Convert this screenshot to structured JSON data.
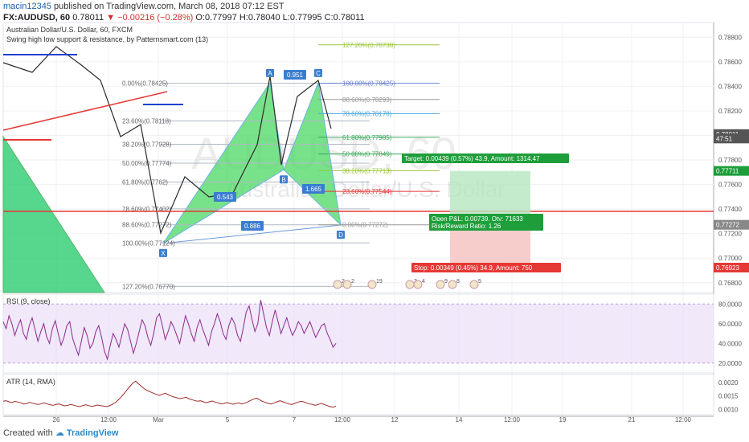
{
  "header": {
    "author": "macin12345",
    "published_text": "published on TradingView.com, March 08, 2018 07:12 EST",
    "symbol": "FX:AUDUSD, 60",
    "last": "0.78011",
    "change": "−0.00216 (−0.28%)",
    "ohlc": "O:0.77997 H:0.78040 L:0.77995 C:0.78011"
  },
  "chart_data": [
    {
      "type": "line",
      "title": "Australian Dollar/U.S. Dollar, 60, FXCM",
      "indicator": "Swing high low support & resistance, by Patternsmart.com (13)",
      "watermark": "AUDUSD, 60",
      "watermark_sub": "Australian Dollar/U.S. Dollar",
      "x_ticks": [
        "26",
        "12:00",
        "Mar",
        "5",
        "7",
        "12:00",
        "12",
        "14",
        "12:00",
        "19",
        "21",
        "12:00"
      ],
      "y_ticks": [
        "0.78800",
        "0.78600",
        "0.78400",
        "0.78200",
        "0.78000",
        "0.77800",
        "0.77600",
        "0.77400",
        "0.77200",
        "0.77000",
        "0.76800"
      ],
      "ylim": [
        0.7672,
        0.7892
      ],
      "price_labels": [
        {
          "text": "0.78011",
          "value": 0.78011,
          "color": "#555555"
        },
        {
          "text": "47:51",
          "value": 0.77975,
          "color": "#555555"
        },
        {
          "text": "0.77711",
          "value": 0.77711,
          "color": "#1e9e3a"
        },
        {
          "text": "0.77272",
          "value": 0.77272,
          "color": "#888888"
        },
        {
          "text": "0.76923",
          "value": 0.76923,
          "color": "#e53935"
        }
      ],
      "pattern_points": [
        {
          "label": "X",
          "x": "Mar 1",
          "y": 0.7712
        },
        {
          "label": "A",
          "x": "Mar 6",
          "y": 0.7843
        },
        {
          "label": "B",
          "x": "Mar 6",
          "y": 0.7772
        },
        {
          "label": "C",
          "x": "Mar 8",
          "y": 0.7843
        },
        {
          "label": "D",
          "x": "Mar 8",
          "y": 0.7727
        }
      ],
      "pattern_ratios": [
        "0.543",
        "0.951",
        "1.665",
        "0.886"
      ],
      "fib_left": [
        {
          "label": "0.00%(0.78425)",
          "value": 0.78425
        },
        {
          "label": "23.60%(0.78118)",
          "value": 0.78118
        },
        {
          "label": "38.20%(0.77928)",
          "value": 0.77928
        },
        {
          "label": "50.00%(0.77774)",
          "value": 0.77774
        },
        {
          "label": "61.80%(0.7762)",
          "value": 0.7762
        },
        {
          "label": "78.60%(0.77402)",
          "value": 0.77402
        },
        {
          "label": "88.60%(0.77272)",
          "value": 0.77272
        },
        {
          "label": "100.00%(0.77124)",
          "value": 0.77124
        },
        {
          "label": "127.20%(0.76770)",
          "value": 0.7677
        }
      ],
      "fib_right": [
        {
          "label": "127.20%(0.78738)",
          "value": 0.78738
        },
        {
          "label": "100.00%(0.78425)",
          "value": 0.78425
        },
        {
          "label": "88.60%(0.78293)",
          "value": 0.78293
        },
        {
          "label": "78.60%(0.78178)",
          "value": 0.78178
        },
        {
          "label": "61.80%(0.77985)",
          "value": 0.77985
        },
        {
          "label": "50.00%(0.77849)",
          "value": 0.77849
        },
        {
          "label": "38.20%(0.77713)",
          "value": 0.77713
        },
        {
          "label": "23.60%(0.77544)",
          "value": 0.77544
        },
        {
          "label": "0.00%(0.77272)",
          "value": 0.77272
        }
      ],
      "position": {
        "target": "Target: 0.00439 (0.57%) 43.9, Amount: 1314.47",
        "open_pl": "Open P&L: 0.00739, Qty: 71633",
        "risk_reward": "Risk/Reward Ratio: 1.26",
        "stop": "Stop: 0.00349 (0.45%) 34.9, Amount: 750",
        "entry": 0.77272,
        "target_price": 0.77711,
        "stop_price": 0.76923
      },
      "event_badges": [
        "2",
        "2",
        "19",
        "3",
        "4",
        "9",
        "8",
        "5"
      ]
    },
    {
      "type": "line",
      "title": "RSI (9, close)",
      "ylim": [
        10,
        90
      ],
      "y_ticks": [
        "80.0000",
        "60.0000",
        "40.0000",
        "20.0000"
      ],
      "band": [
        20,
        80
      ],
      "values": [
        62,
        55,
        68,
        60,
        48,
        57,
        64,
        50,
        44,
        58,
        66,
        54,
        42,
        52,
        60,
        47,
        40,
        55,
        63,
        50,
        38,
        46,
        58,
        62,
        45,
        36,
        28,
        42,
        56,
        48,
        35,
        40,
        52,
        58,
        46,
        32,
        24,
        38,
        50,
        44,
        36,
        48,
        60,
        54,
        42,
        30,
        40,
        52,
        64,
        58,
        46,
        38,
        50,
        66,
        70,
        58,
        44,
        52,
        62,
        56,
        48,
        40,
        54,
        68,
        60,
        50,
        42,
        56,
        64,
        54,
        46,
        38,
        52,
        60,
        70,
        62,
        50,
        44,
        58,
        66,
        60,
        48,
        42,
        56,
        72,
        78,
        64,
        52,
        60,
        84,
        70,
        56,
        48,
        62,
        74,
        62,
        50,
        58,
        66,
        56,
        48,
        54,
        62,
        58,
        50,
        56,
        62,
        54,
        46,
        52,
        58,
        60,
        50,
        44,
        36,
        40
      ]
    },
    {
      "type": "line",
      "title": "ATR (14, RMA)",
      "ylim": [
        0.0008,
        0.0023
      ],
      "y_ticks": [
        "0.0020",
        "0.0015",
        "0.0010"
      ],
      "values": [
        0.0013,
        0.00132,
        0.00128,
        0.00125,
        0.0013,
        0.00127,
        0.00124,
        0.0012,
        0.00122,
        0.00126,
        0.00123,
        0.0012,
        0.00118,
        0.00121,
        0.00124,
        0.0012,
        0.00117,
        0.00115,
        0.00118,
        0.0012,
        0.00116,
        0.00113,
        0.00115,
        0.00118,
        0.00115,
        0.00112,
        0.0011,
        0.00114,
        0.00117,
        0.00114,
        0.00111,
        0.00113,
        0.00116,
        0.00114,
        0.00112,
        0.0011,
        0.00113,
        0.00118,
        0.00125,
        0.00134,
        0.00145,
        0.00158,
        0.00172,
        0.00185,
        0.00198,
        0.00205,
        0.00195,
        0.00185,
        0.00176,
        0.0017,
        0.00165,
        0.0016,
        0.00156,
        0.00152,
        0.00156,
        0.0016,
        0.00155,
        0.0015,
        0.00146,
        0.00143,
        0.0014,
        0.00142,
        0.00145,
        0.0014,
        0.00136,
        0.00133,
        0.0013,
        0.00132,
        0.00128,
        0.00125,
        0.00128,
        0.00131,
        0.00127,
        0.00124,
        0.0012,
        0.00122,
        0.00125,
        0.00122,
        0.00119,
        0.00121,
        0.00124,
        0.0012,
        0.00123,
        0.00127,
        0.00133,
        0.00138,
        0.00142,
        0.00136,
        0.0013,
        0.00126,
        0.00122,
        0.0012,
        0.00124,
        0.00128,
        0.00132,
        0.00128,
        0.00124,
        0.0012,
        0.00118,
        0.00122,
        0.00126,
        0.0013,
        0.00128,
        0.00124,
        0.0012,
        0.00118,
        0.00115,
        0.00118,
        0.00122,
        0.00118,
        0.00114,
        0.0011,
        0.00108,
        0.00112
      ]
    }
  ],
  "footer": {
    "created_with": "Created with",
    "brand": "TradingView"
  }
}
